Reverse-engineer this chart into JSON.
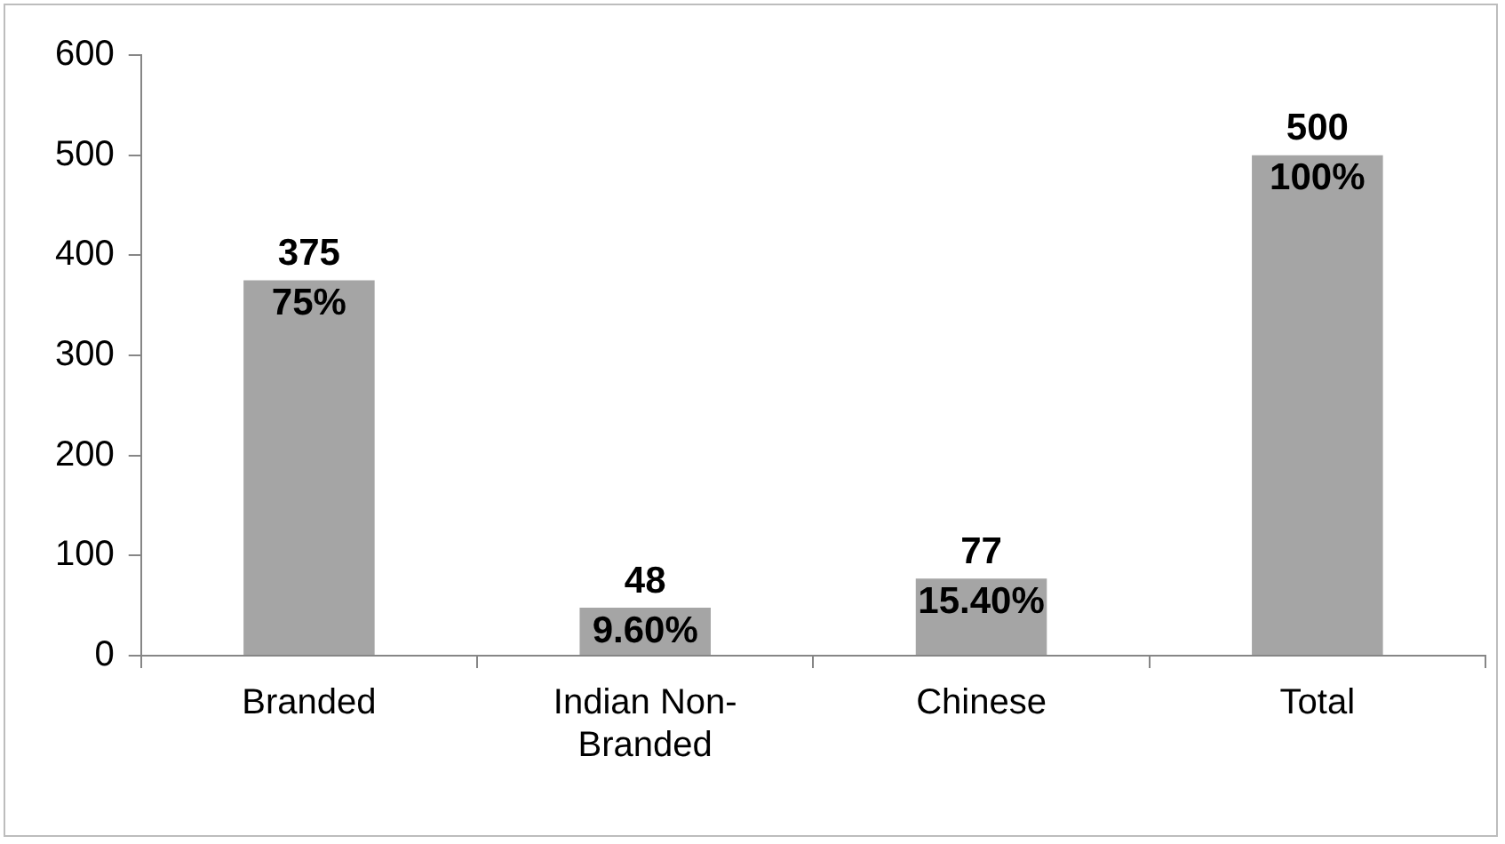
{
  "chart_data": {
    "type": "bar",
    "categories": [
      "Branded",
      "Indian Non-Branded",
      "Chinese",
      "Total"
    ],
    "values": [
      375,
      48,
      77,
      500
    ],
    "color": "#a5a5a5",
    "ylim": [
      0,
      600
    ],
    "yticks": [
      0,
      100,
      200,
      300,
      400,
      500,
      600
    ],
    "grid": false,
    "legend": false,
    "data_labels": true,
    "annotations": [
      {
        "text": "75%",
        "x": "Branded",
        "y": 375
      },
      {
        "text": "9.60%",
        "x": "Indian Non-Branded",
        "y": 48
      },
      {
        "text": "15.40%",
        "x": "Chinese",
        "y": 77
      },
      {
        "text": "100%",
        "x": "Total",
        "y": 500
      }
    ]
  }
}
